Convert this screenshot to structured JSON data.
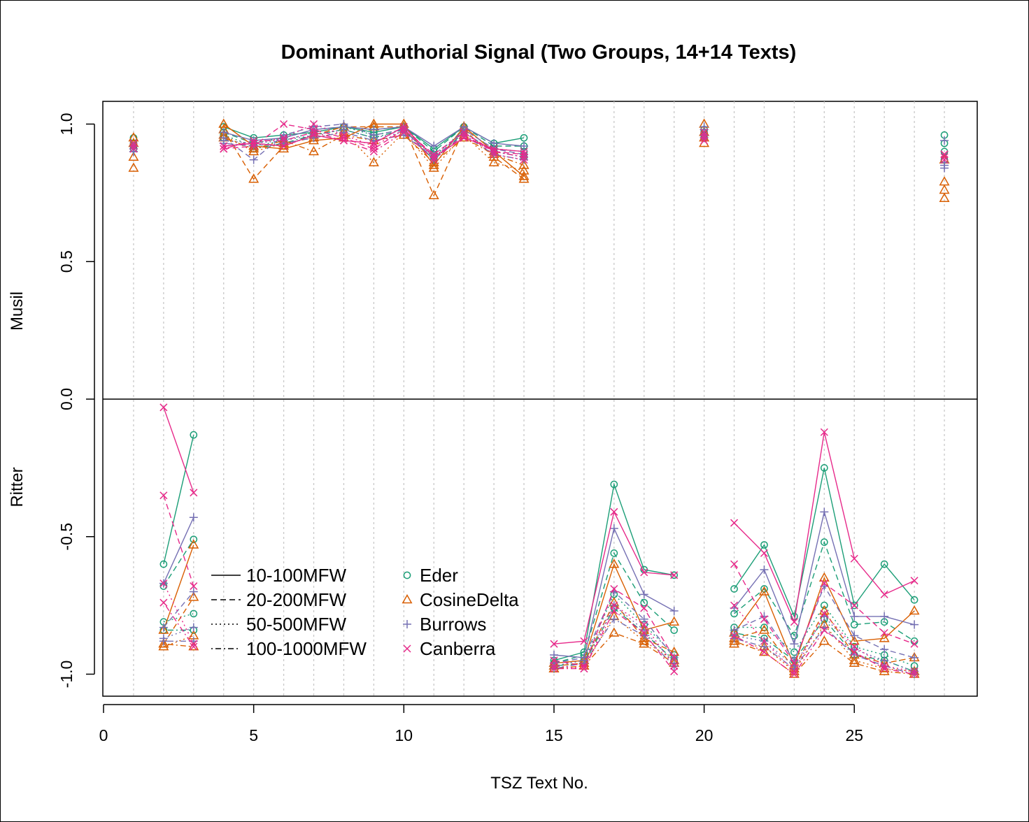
{
  "chart_data": {
    "type": "line",
    "title": "Dominant Authorial Signal (Two Groups, 14+14 Texts)",
    "xlabel": "TSZ Text No.",
    "ylabel_top": "Musil",
    "ylabel_bottom": "Ritter",
    "xlim": [
      0,
      29
    ],
    "ylim": [
      -1.07,
      1.08
    ],
    "x_ticks": [
      "0",
      "5",
      "10",
      "15",
      "20",
      "25"
    ],
    "y_ticks": [
      "-1.0",
      "-0.5",
      "0.0",
      "0.5",
      "1.0"
    ],
    "grid": "vertical dotted lines at x = 1..28",
    "legend_linetypes": [
      {
        "label": "10-100MFW",
        "dash": "solid"
      },
      {
        "label": "20-200MFW",
        "dash": "dashed"
      },
      {
        "label": "50-500MFW",
        "dash": "dotted"
      },
      {
        "label": "100-1000MFW",
        "dash": "dotdash"
      }
    ],
    "legend_methods": [
      {
        "label": "Eder",
        "color": "#1b9e77",
        "symbol": "circle"
      },
      {
        "label": "CosineDelta",
        "color": "#d95f02",
        "symbol": "triangle"
      },
      {
        "label": "Burrows",
        "color": "#7570b3",
        "symbol": "plus"
      },
      {
        "label": "Canberra",
        "color": "#e7298a",
        "symbol": "cross"
      }
    ],
    "x": [
      1,
      2,
      3,
      4,
      5,
      6,
      7,
      8,
      9,
      10,
      11,
      12,
      13,
      14,
      15,
      16,
      17,
      18,
      19,
      20,
      21,
      22,
      23,
      24,
      25,
      26,
      27,
      28
    ],
    "series": [
      {
        "name": "Eder 10-100MFW",
        "method": "Eder",
        "mfw": "10-100MFW",
        "values": [
          0.95,
          -0.6,
          -0.13,
          0.99,
          0.95,
          0.96,
          0.97,
          0.99,
          0.97,
          0.99,
          0.91,
          0.99,
          0.93,
          0.95,
          -0.95,
          -0.92,
          -0.31,
          -0.62,
          -0.64,
          0.98,
          -0.69,
          -0.53,
          -0.79,
          -0.25,
          -0.75,
          -0.6,
          -0.73,
          0.96
        ]
      },
      {
        "name": "Eder 20-200MFW",
        "method": "Eder",
        "mfw": "20-200MFW",
        "values": [
          0.93,
          -0.68,
          -0.51,
          0.97,
          0.93,
          0.95,
          0.98,
          0.99,
          0.98,
          0.99,
          0.9,
          0.99,
          0.92,
          0.92,
          -0.96,
          -0.93,
          -0.56,
          -0.74,
          -0.84,
          0.97,
          -0.78,
          -0.69,
          -0.86,
          -0.52,
          -0.82,
          -0.81,
          -0.88,
          0.93
        ]
      },
      {
        "name": "Eder 50-500MFW",
        "method": "Eder",
        "mfw": "50-500MFW",
        "values": [
          0.92,
          -0.81,
          -0.78,
          0.96,
          0.92,
          0.94,
          0.97,
          0.99,
          0.96,
          0.98,
          0.88,
          0.98,
          0.91,
          0.9,
          -0.97,
          -0.95,
          -0.71,
          -0.82,
          -0.93,
          0.96,
          -0.83,
          -0.83,
          -0.92,
          -0.75,
          -0.9,
          -0.93,
          -0.97,
          0.9
        ]
      },
      {
        "name": "Eder 100-1000MFW",
        "method": "Eder",
        "mfw": "100-1000MFW",
        "values": [
          0.91,
          -0.84,
          -0.84,
          0.95,
          0.91,
          0.93,
          0.96,
          0.98,
          0.95,
          0.98,
          0.87,
          0.97,
          0.9,
          0.88,
          -0.97,
          -0.96,
          -0.76,
          -0.85,
          -0.95,
          0.95,
          -0.85,
          -0.87,
          -0.95,
          -0.8,
          -0.93,
          -0.95,
          -0.99,
          0.87
        ]
      },
      {
        "name": "CosineDelta 10-100MFW",
        "method": "CosineDelta",
        "mfw": "10-100MFW",
        "values": [
          0.93,
          -0.84,
          -0.53,
          1.0,
          0.92,
          0.91,
          0.94,
          0.95,
          1.0,
          1.0,
          0.85,
          0.99,
          0.9,
          0.81,
          -0.96,
          -0.95,
          -0.6,
          -0.84,
          -0.81,
          1.0,
          -0.85,
          -0.7,
          -0.97,
          -0.65,
          -0.88,
          -0.87,
          -0.77,
          0.79
        ]
      },
      {
        "name": "CosineDelta 20-200MFW",
        "method": "CosineDelta",
        "mfw": "20-200MFW",
        "values": [
          0.88,
          -0.89,
          -0.72,
          0.98,
          0.8,
          0.92,
          0.96,
          0.99,
          0.99,
          0.99,
          0.74,
          0.98,
          0.88,
          0.8,
          -0.97,
          -0.96,
          -0.74,
          -0.87,
          -0.92,
          0.97,
          -0.87,
          -0.84,
          -0.98,
          -0.77,
          -0.93,
          -0.96,
          -0.94,
          0.76
        ]
      },
      {
        "name": "CosineDelta 50-500MFW",
        "method": "CosineDelta",
        "mfw": "50-500MFW",
        "values": [
          0.84,
          -0.9,
          -0.86,
          0.96,
          0.9,
          0.93,
          0.95,
          0.97,
          0.86,
          0.97,
          0.84,
          0.96,
          0.86,
          0.83,
          -0.98,
          -0.97,
          -0.79,
          -0.88,
          -0.95,
          0.95,
          -0.89,
          -0.9,
          -0.99,
          -0.82,
          -0.95,
          -0.98,
          -0.99,
          0.73
        ]
      },
      {
        "name": "CosineDelta 100-1000MFW",
        "method": "CosineDelta",
        "mfw": "100-1000MFW",
        "values": [
          0.95,
          -0.89,
          -0.9,
          0.95,
          0.91,
          0.94,
          0.9,
          0.96,
          0.94,
          0.96,
          0.86,
          0.95,
          0.89,
          0.85,
          -0.98,
          -0.97,
          -0.85,
          -0.89,
          -0.96,
          0.93,
          -0.88,
          -0.92,
          -1.0,
          -0.88,
          -0.96,
          -0.99,
          -1.0,
          0.87
        ]
      },
      {
        "name": "Burrows 10-100MFW",
        "method": "Burrows",
        "mfw": "10-100MFW",
        "values": [
          0.92,
          -0.67,
          -0.43,
          0.97,
          0.94,
          0.95,
          0.98,
          0.99,
          0.98,
          0.99,
          0.92,
          0.99,
          0.93,
          0.92,
          -0.93,
          -0.94,
          -0.47,
          -0.71,
          -0.77,
          0.99,
          -0.76,
          -0.62,
          -0.89,
          -0.41,
          -0.79,
          -0.79,
          -0.82,
          0.94
        ]
      },
      {
        "name": "Burrows 20-200MFW",
        "method": "Burrows",
        "mfw": "20-200MFW",
        "values": [
          0.91,
          -0.83,
          -0.7,
          0.95,
          0.87,
          0.96,
          0.99,
          1.0,
          0.96,
          0.98,
          0.87,
          0.98,
          0.91,
          0.89,
          -0.96,
          -0.94,
          -0.7,
          -0.8,
          -0.94,
          0.98,
          -0.84,
          -0.79,
          -0.95,
          -0.68,
          -0.86,
          -0.91,
          -0.94,
          0.86
        ]
      },
      {
        "name": "Burrows 50-500MFW",
        "method": "Burrows",
        "mfw": "50-500MFW",
        "values": [
          0.9,
          -0.87,
          -0.83,
          0.94,
          0.93,
          0.94,
          0.96,
          0.98,
          0.95,
          0.97,
          0.89,
          0.97,
          0.9,
          0.88,
          -0.97,
          -0.95,
          -0.75,
          -0.84,
          -0.96,
          0.96,
          -0.86,
          -0.88,
          -0.97,
          -0.79,
          -0.91,
          -0.95,
          -0.99,
          0.84
        ]
      },
      {
        "name": "Burrows 100-1000MFW",
        "method": "Burrows",
        "mfw": "100-1000MFW",
        "values": [
          0.9,
          -0.88,
          -0.88,
          0.93,
          0.92,
          0.93,
          0.95,
          0.97,
          0.94,
          0.96,
          0.88,
          0.96,
          0.89,
          0.87,
          -0.98,
          -0.96,
          -0.8,
          -0.86,
          -0.97,
          0.95,
          -0.87,
          -0.9,
          -0.98,
          -0.83,
          -0.93,
          -0.97,
          -1.0,
          0.85
        ]
      },
      {
        "name": "Canberra 10-100MFW",
        "method": "Canberra",
        "mfw": "10-100MFW",
        "values": [
          0.93,
          -0.03,
          -0.34,
          0.92,
          0.93,
          0.92,
          0.96,
          0.94,
          0.93,
          0.99,
          0.88,
          0.95,
          0.91,
          0.9,
          -0.89,
          -0.88,
          -0.41,
          -0.63,
          -0.64,
          0.97,
          -0.45,
          -0.56,
          -0.81,
          -0.12,
          -0.58,
          -0.71,
          -0.66,
          0.89
        ]
      },
      {
        "name": "Canberra 20-200MFW",
        "method": "Canberra",
        "mfw": "20-200MFW",
        "values": [
          0.92,
          -0.35,
          -0.68,
          0.91,
          0.92,
          1.0,
          0.98,
          0.95,
          0.91,
          0.98,
          0.89,
          0.97,
          0.9,
          0.89,
          -0.95,
          -0.97,
          -0.69,
          -0.76,
          -0.94,
          0.96,
          -0.6,
          -0.8,
          -0.96,
          -0.67,
          -0.75,
          -0.85,
          -0.89,
          0.88
        ]
      },
      {
        "name": "Canberra 50-500MFW",
        "method": "Canberra",
        "mfw": "50-500MFW",
        "values": [
          0.91,
          -0.67,
          -0.89,
          0.92,
          0.93,
          0.95,
          1.0,
          0.96,
          0.92,
          0.98,
          0.88,
          0.97,
          0.89,
          0.87,
          -0.97,
          -0.98,
          -0.75,
          -0.82,
          -0.97,
          0.95,
          -0.75,
          -0.88,
          -0.99,
          -0.78,
          -0.9,
          -0.97,
          -0.99,
          0.87
        ]
      },
      {
        "name": "Canberra 100-1000MFW",
        "method": "Canberra",
        "mfw": "100-1000MFW",
        "values": [
          0.92,
          -0.74,
          -0.9,
          0.91,
          0.94,
          0.94,
          0.97,
          0.94,
          0.9,
          0.97,
          0.87,
          0.96,
          0.9,
          0.88,
          -0.98,
          -0.98,
          -0.77,
          -0.85,
          -0.99,
          0.94,
          -0.86,
          -0.92,
          -1.0,
          -0.84,
          -0.92,
          -0.98,
          -1.0,
          0.89
        ]
      }
    ]
  }
}
